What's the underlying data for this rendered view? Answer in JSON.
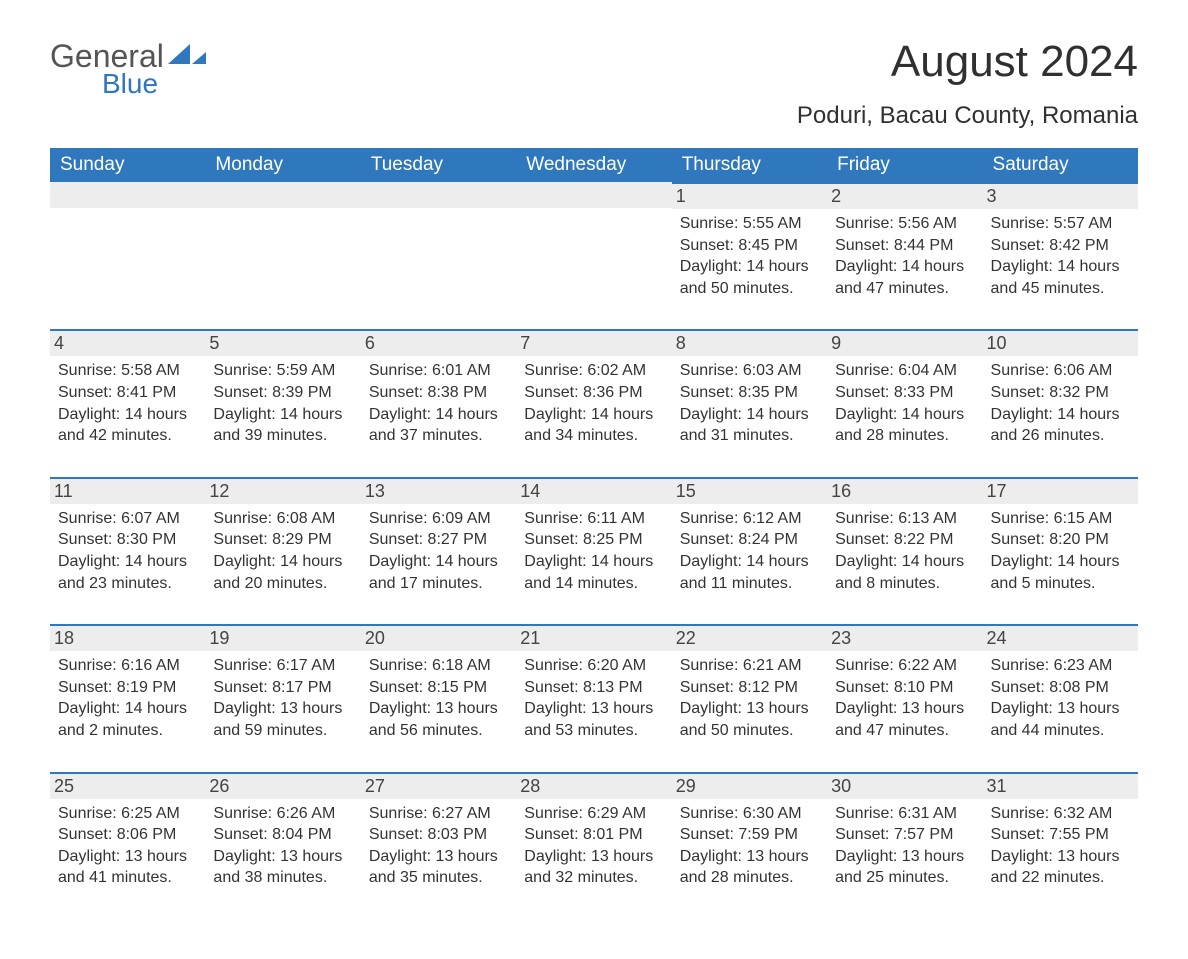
{
  "brand": {
    "line1": "General",
    "line2": "Blue"
  },
  "title": "August 2024",
  "location": "Poduri, Bacau County, Romania",
  "colors": {
    "header_bg": "#2f78bd",
    "header_text": "#ffffff",
    "daynum_bg": "#ededed",
    "daynum_border_top": "#2f78bd",
    "body_text": "#333333",
    "page_bg": "#ffffff"
  },
  "layout": {
    "columns": 7,
    "rows": 5,
    "first_weekday_index": 4
  },
  "typography": {
    "title_fontsize": 44,
    "location_fontsize": 24,
    "header_fontsize": 19,
    "daynum_fontsize": 18,
    "body_fontsize": 16,
    "font_family": "Arial"
  },
  "day_headers": [
    "Sunday",
    "Monday",
    "Tuesday",
    "Wednesday",
    "Thursday",
    "Friday",
    "Saturday"
  ],
  "weeks": [
    [
      null,
      null,
      null,
      null,
      {
        "n": "1",
        "sunrise": "Sunrise: 5:55 AM",
        "sunset": "Sunset: 8:45 PM",
        "day1": "Daylight: 14 hours",
        "day2": "and 50 minutes."
      },
      {
        "n": "2",
        "sunrise": "Sunrise: 5:56 AM",
        "sunset": "Sunset: 8:44 PM",
        "day1": "Daylight: 14 hours",
        "day2": "and 47 minutes."
      },
      {
        "n": "3",
        "sunrise": "Sunrise: 5:57 AM",
        "sunset": "Sunset: 8:42 PM",
        "day1": "Daylight: 14 hours",
        "day2": "and 45 minutes."
      }
    ],
    [
      {
        "n": "4",
        "sunrise": "Sunrise: 5:58 AM",
        "sunset": "Sunset: 8:41 PM",
        "day1": "Daylight: 14 hours",
        "day2": "and 42 minutes."
      },
      {
        "n": "5",
        "sunrise": "Sunrise: 5:59 AM",
        "sunset": "Sunset: 8:39 PM",
        "day1": "Daylight: 14 hours",
        "day2": "and 39 minutes."
      },
      {
        "n": "6",
        "sunrise": "Sunrise: 6:01 AM",
        "sunset": "Sunset: 8:38 PM",
        "day1": "Daylight: 14 hours",
        "day2": "and 37 minutes."
      },
      {
        "n": "7",
        "sunrise": "Sunrise: 6:02 AM",
        "sunset": "Sunset: 8:36 PM",
        "day1": "Daylight: 14 hours",
        "day2": "and 34 minutes."
      },
      {
        "n": "8",
        "sunrise": "Sunrise: 6:03 AM",
        "sunset": "Sunset: 8:35 PM",
        "day1": "Daylight: 14 hours",
        "day2": "and 31 minutes."
      },
      {
        "n": "9",
        "sunrise": "Sunrise: 6:04 AM",
        "sunset": "Sunset: 8:33 PM",
        "day1": "Daylight: 14 hours",
        "day2": "and 28 minutes."
      },
      {
        "n": "10",
        "sunrise": "Sunrise: 6:06 AM",
        "sunset": "Sunset: 8:32 PM",
        "day1": "Daylight: 14 hours",
        "day2": "and 26 minutes."
      }
    ],
    [
      {
        "n": "11",
        "sunrise": "Sunrise: 6:07 AM",
        "sunset": "Sunset: 8:30 PM",
        "day1": "Daylight: 14 hours",
        "day2": "and 23 minutes."
      },
      {
        "n": "12",
        "sunrise": "Sunrise: 6:08 AM",
        "sunset": "Sunset: 8:29 PM",
        "day1": "Daylight: 14 hours",
        "day2": "and 20 minutes."
      },
      {
        "n": "13",
        "sunrise": "Sunrise: 6:09 AM",
        "sunset": "Sunset: 8:27 PM",
        "day1": "Daylight: 14 hours",
        "day2": "and 17 minutes."
      },
      {
        "n": "14",
        "sunrise": "Sunrise: 6:11 AM",
        "sunset": "Sunset: 8:25 PM",
        "day1": "Daylight: 14 hours",
        "day2": "and 14 minutes."
      },
      {
        "n": "15",
        "sunrise": "Sunrise: 6:12 AM",
        "sunset": "Sunset: 8:24 PM",
        "day1": "Daylight: 14 hours",
        "day2": "and 11 minutes."
      },
      {
        "n": "16",
        "sunrise": "Sunrise: 6:13 AM",
        "sunset": "Sunset: 8:22 PM",
        "day1": "Daylight: 14 hours",
        "day2": "and 8 minutes."
      },
      {
        "n": "17",
        "sunrise": "Sunrise: 6:15 AM",
        "sunset": "Sunset: 8:20 PM",
        "day1": "Daylight: 14 hours",
        "day2": "and 5 minutes."
      }
    ],
    [
      {
        "n": "18",
        "sunrise": "Sunrise: 6:16 AM",
        "sunset": "Sunset: 8:19 PM",
        "day1": "Daylight: 14 hours",
        "day2": "and 2 minutes."
      },
      {
        "n": "19",
        "sunrise": "Sunrise: 6:17 AM",
        "sunset": "Sunset: 8:17 PM",
        "day1": "Daylight: 13 hours",
        "day2": "and 59 minutes."
      },
      {
        "n": "20",
        "sunrise": "Sunrise: 6:18 AM",
        "sunset": "Sunset: 8:15 PM",
        "day1": "Daylight: 13 hours",
        "day2": "and 56 minutes."
      },
      {
        "n": "21",
        "sunrise": "Sunrise: 6:20 AM",
        "sunset": "Sunset: 8:13 PM",
        "day1": "Daylight: 13 hours",
        "day2": "and 53 minutes."
      },
      {
        "n": "22",
        "sunrise": "Sunrise: 6:21 AM",
        "sunset": "Sunset: 8:12 PM",
        "day1": "Daylight: 13 hours",
        "day2": "and 50 minutes."
      },
      {
        "n": "23",
        "sunrise": "Sunrise: 6:22 AM",
        "sunset": "Sunset: 8:10 PM",
        "day1": "Daylight: 13 hours",
        "day2": "and 47 minutes."
      },
      {
        "n": "24",
        "sunrise": "Sunrise: 6:23 AM",
        "sunset": "Sunset: 8:08 PM",
        "day1": "Daylight: 13 hours",
        "day2": "and 44 minutes."
      }
    ],
    [
      {
        "n": "25",
        "sunrise": "Sunrise: 6:25 AM",
        "sunset": "Sunset: 8:06 PM",
        "day1": "Daylight: 13 hours",
        "day2": "and 41 minutes."
      },
      {
        "n": "26",
        "sunrise": "Sunrise: 6:26 AM",
        "sunset": "Sunset: 8:04 PM",
        "day1": "Daylight: 13 hours",
        "day2": "and 38 minutes."
      },
      {
        "n": "27",
        "sunrise": "Sunrise: 6:27 AM",
        "sunset": "Sunset: 8:03 PM",
        "day1": "Daylight: 13 hours",
        "day2": "and 35 minutes."
      },
      {
        "n": "28",
        "sunrise": "Sunrise: 6:29 AM",
        "sunset": "Sunset: 8:01 PM",
        "day1": "Daylight: 13 hours",
        "day2": "and 32 minutes."
      },
      {
        "n": "29",
        "sunrise": "Sunrise: 6:30 AM",
        "sunset": "Sunset: 7:59 PM",
        "day1": "Daylight: 13 hours",
        "day2": "and 28 minutes."
      },
      {
        "n": "30",
        "sunrise": "Sunrise: 6:31 AM",
        "sunset": "Sunset: 7:57 PM",
        "day1": "Daylight: 13 hours",
        "day2": "and 25 minutes."
      },
      {
        "n": "31",
        "sunrise": "Sunrise: 6:32 AM",
        "sunset": "Sunset: 7:55 PM",
        "day1": "Daylight: 13 hours",
        "day2": "and 22 minutes."
      }
    ]
  ]
}
